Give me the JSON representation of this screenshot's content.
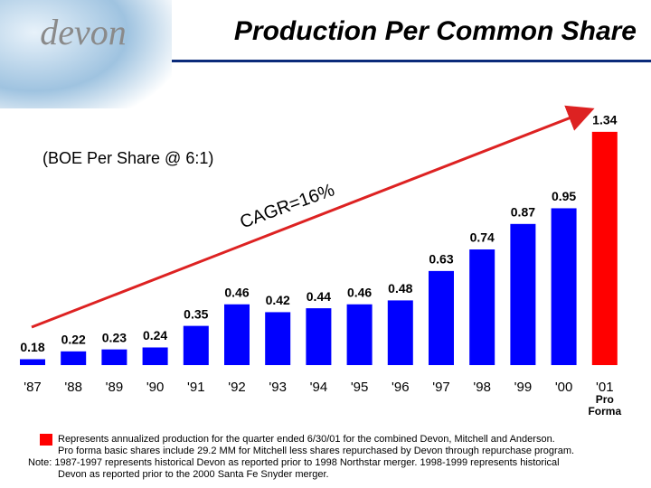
{
  "logo": "devon",
  "chart_data": {
    "type": "bar",
    "title": "Production Per Common Share",
    "subtitle": "(BOE Per Share @ 6:1)",
    "annotation": "CAGR=16%",
    "categories": [
      "'87",
      "'88",
      "'89",
      "'90",
      "'91",
      "'92",
      "'93",
      "'94",
      "'95",
      "'96",
      "'97",
      "'98",
      "'99",
      "'00",
      "'01"
    ],
    "category_note": [
      "Pro",
      "Forma"
    ],
    "values": [
      0.18,
      0.22,
      0.23,
      0.24,
      0.35,
      0.46,
      0.42,
      0.44,
      0.46,
      0.48,
      0.63,
      0.74,
      0.87,
      0.95,
      1.34
    ],
    "colors": [
      "#0000ff",
      "#0000ff",
      "#0000ff",
      "#0000ff",
      "#0000ff",
      "#0000ff",
      "#0000ff",
      "#0000ff",
      "#0000ff",
      "#0000ff",
      "#0000ff",
      "#0000ff",
      "#0000ff",
      "#0000ff",
      "#ff0000"
    ],
    "ylim": [
      0.15,
      1.45
    ],
    "legend": {
      "color": "#ff0000",
      "lines": [
        "Represents annualized production for the quarter ended 6/30/01 for the combined Devon, Mitchell and Anderson.",
        "Pro forma basic shares include 29.2 MM for Mitchell less shares repurchased by Devon through repurchase program."
      ]
    },
    "notes": [
      "Note: 1987-1997 represents historical Devon as reported prior to 1998 Northstar merger. 1998-1999 represents historical",
      "Devon as reported prior to the 2000 Santa Fe Snyder merger."
    ]
  }
}
